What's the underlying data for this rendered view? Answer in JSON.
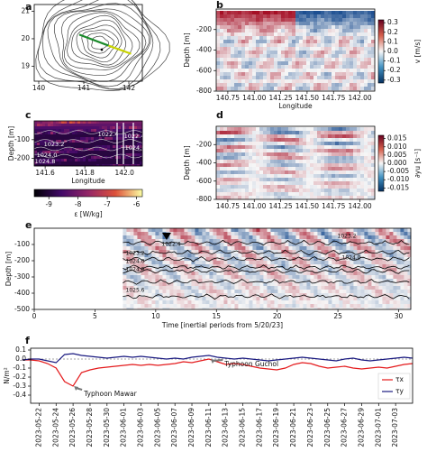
{
  "chart_data": [
    {
      "type": "contour_map",
      "panel_label": "a",
      "xlim": [
        139.9,
        142.3
      ],
      "ylim": [
        18.45,
        21.25
      ],
      "xticks": [
        140,
        141,
        142
      ],
      "yticks": [
        19,
        20,
        21
      ]
    },
    {
      "type": "heatmap",
      "panel_label": "b",
      "xlabel": "Longitude",
      "ylabel": "Depth [m]",
      "xlim": [
        140.64,
        142.14
      ],
      "ylim": [
        -800,
        0
      ],
      "xticks": [
        140.75,
        {
          "value": 141,
          "label": "141.00"
        },
        141.25,
        {
          "value": 141.5,
          "label": "141.50"
        },
        141.75,
        {
          "value": 142,
          "label": "142.00"
        }
      ],
      "yticks": [
        -200,
        -400,
        -600,
        -800
      ],
      "colorbar": {
        "label": "v [m/s]",
        "lim": [
          -0.33,
          0.33
        ],
        "ticks": [
          0.3,
          0.2,
          0.1,
          {
            "value": 0,
            "label": "0.0"
          },
          -0.1,
          -0.2,
          -0.3
        ]
      }
    },
    {
      "type": "dissipation",
      "panel_label": "c",
      "xlabel": "Longitude",
      "ylabel": "Depth [m]",
      "xlim": [
        141.545,
        142.09
      ],
      "ylim": [
        -240,
        0
      ],
      "xticks": [
        141.6,
        141.8,
        {
          "value": 142,
          "label": "142.0"
        }
      ],
      "yticks": [
        -100,
        -200
      ],
      "contour_labels": [
        "1023.2",
        "1024.0",
        "1024.8",
        "1022.4",
        "1022.4",
        "1024.0"
      ],
      "colorbar": {
        "label": "ε [W/kg]",
        "lim": [
          -9.5,
          -5.8
        ],
        "ticks": [
          -9,
          -8,
          -7,
          -6
        ]
      }
    },
    {
      "type": "heatmap",
      "panel_label": "d",
      "ylabel": "Depth [m]",
      "xlim": [
        140.64,
        142.14
      ],
      "ylim": [
        -800,
        0
      ],
      "xticks": [
        140.75,
        {
          "value": 141,
          "label": "141.00"
        },
        141.25,
        {
          "value": 141.5,
          "label": "141.50"
        },
        141.75,
        {
          "value": 142,
          "label": "142.00"
        }
      ],
      "yticks": [
        -200,
        -400,
        -600,
        -800
      ],
      "colorbar": {
        "label": "∂yu [s⁻¹]",
        "lim": [
          -0.017,
          0.017
        ],
        "ticks": [
          0.015,
          {
            "value": 0.01,
            "label": "0.010"
          },
          0.005,
          {
            "value": 0,
            "label": "0.000"
          },
          -0.005,
          {
            "value": -0.01,
            "label": "-0.010"
          },
          -0.015
        ]
      }
    },
    {
      "type": "timeseries_heatmap",
      "panel_label": "e",
      "xlabel": "Time [inertial periods from 5/20/23]",
      "ylabel": "Depth [m]",
      "xlim": [
        0,
        31
      ],
      "ylim": [
        -500,
        0
      ],
      "xticks": [
        0,
        5,
        10,
        15,
        20,
        25,
        30
      ],
      "yticks": [
        -100,
        -200,
        -300,
        -400,
        -500
      ],
      "contour_labels": [
        "1022.4",
        "1023.2",
        "1024.0",
        "1024.8",
        "1025.6",
        "1023.2",
        "1024.0"
      ]
    },
    {
      "type": "line",
      "panel_label": "f",
      "ylabel": "N/m²",
      "legend": "lower right",
      "x": [
        "2023-05-20",
        "2023-05-21",
        "2023-05-22",
        "2023-05-23",
        "2023-05-24",
        "2023-05-25",
        "2023-05-26",
        "2023-05-27",
        "2023-05-28",
        "2023-05-29",
        "2023-05-30",
        "2023-05-31",
        "2023-06-01",
        "2023-06-02",
        "2023-06-03",
        "2023-06-04",
        "2023-06-05",
        "2023-06-06",
        "2023-06-07",
        "2023-06-08",
        "2023-06-09",
        "2023-06-10",
        "2023-06-11",
        "2023-06-12",
        "2023-06-13",
        "2023-06-14",
        "2023-06-15",
        "2023-06-16",
        "2023-06-17",
        "2023-06-18",
        "2023-06-19",
        "2023-06-20",
        "2023-06-21",
        "2023-06-22",
        "2023-06-23",
        "2023-06-24",
        "2023-06-25",
        "2023-06-26",
        "2023-06-27",
        "2023-06-28",
        "2023-06-29",
        "2023-06-30",
        "2023-07-01",
        "2023-07-02",
        "2023-07-03",
        "2023-07-04",
        "2023-07-05"
      ],
      "series": [
        {
          "name": "τx",
          "color": "#e41a1c",
          "values": [
            -0.01,
            -0.01,
            -0.02,
            -0.05,
            -0.1,
            -0.25,
            -0.3,
            -0.15,
            -0.12,
            -0.1,
            -0.09,
            -0.08,
            -0.07,
            -0.06,
            -0.07,
            -0.06,
            -0.07,
            -0.06,
            -0.05,
            -0.03,
            -0.04,
            -0.02,
            0,
            -0.03,
            -0.06,
            -0.05,
            -0.06,
            -0.08,
            -0.1,
            -0.11,
            -0.12,
            -0.1,
            -0.06,
            -0.04,
            -0.05,
            -0.08,
            -0.1,
            -0.09,
            -0.08,
            -0.1,
            -0.11,
            -0.1,
            -0.09,
            -0.1,
            -0.08,
            -0.06,
            -0.05
          ]
        },
        {
          "name": "τy",
          "color": "#1a1a80",
          "values": [
            -0.01,
            0,
            0,
            -0.02,
            -0.04,
            0.05,
            0.06,
            0.04,
            0.03,
            0.02,
            0.01,
            0.02,
            0.03,
            0.02,
            0.03,
            0.02,
            0.01,
            0,
            0.01,
            0,
            0.02,
            0.03,
            0.04,
            0.02,
            0.01,
            0,
            0.01,
            0,
            -0.01,
            -0.02,
            -0.01,
            0,
            0.01,
            0.02,
            0.01,
            0,
            -0.01,
            -0.02,
            0,
            0.01,
            -0.01,
            -0.02,
            -0.01,
            0,
            0.01,
            0.02,
            0.01
          ]
        }
      ],
      "xlim": [
        "2023-05-21",
        "2023-07-05"
      ],
      "ylim": [
        -0.49,
        0.12
      ],
      "xticks": [
        "2023-05-22",
        "2023-05-24",
        "2023-05-26",
        "2023-05-28",
        "2023-05-30",
        "2023-06-01",
        "2023-06-03",
        "2023-06-05",
        "2023-06-07",
        "2023-06-09",
        "2023-06-11",
        "2023-06-13",
        "2023-06-15",
        "2023-06-17",
        "2023-06-19",
        "2023-06-21",
        "2023-06-23",
        "2023-06-25",
        "2023-06-27",
        "2023-06-29",
        "2023-07-01",
        "2023-07-03"
      ],
      "yticks": [
        0.1,
        {
          "value": 0,
          "label": "0.0"
        },
        -0.1,
        -0.2,
        -0.3,
        -0.4
      ],
      "annotations": [
        "Typhoon Mawar",
        "Typhoon Guchol"
      ]
    }
  ]
}
